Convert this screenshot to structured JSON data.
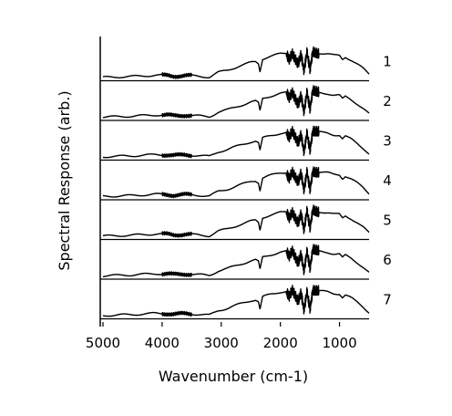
{
  "chart_data": {
    "type": "line",
    "title": "",
    "xlabel": "Wavenumber (cm-1)",
    "ylabel": "Spectral Response (arb.)",
    "x_reversed": true,
    "xlim": [
      5000,
      500
    ],
    "x_ticks": [
      5000,
      4000,
      3000,
      2000,
      1000
    ],
    "x_tick_labels": [
      "5000",
      "4000",
      "3000",
      "2000",
      "1000"
    ],
    "grid": false,
    "stacked_panels": true,
    "series": [
      {
        "name": "1"
      },
      {
        "name": "2"
      },
      {
        "name": "3"
      },
      {
        "name": "4"
      },
      {
        "name": "5"
      },
      {
        "name": "6"
      },
      {
        "name": "7"
      }
    ],
    "spectrum_shape": {
      "x": [
        5000,
        4500,
        4100,
        3900,
        3800,
        3700,
        3600,
        3400,
        3200,
        3050,
        2900,
        2700,
        2500,
        2420,
        2370,
        2345,
        2300,
        2200,
        2100,
        2000,
        1900,
        1850,
        1800,
        1700,
        1650,
        1600,
        1550,
        1500,
        1450,
        1400,
        1300,
        1200,
        1100,
        1000,
        950,
        900,
        800,
        700,
        600,
        500
      ],
      "y": [
        0.02,
        0.05,
        0.09,
        0.08,
        0.06,
        0.07,
        0.08,
        0.06,
        0.03,
        0.18,
        0.25,
        0.38,
        0.5,
        0.53,
        0.47,
        0.22,
        0.62,
        0.68,
        0.73,
        0.78,
        0.8,
        0.62,
        0.82,
        0.45,
        0.75,
        0.2,
        0.82,
        0.25,
        0.85,
        0.82,
        0.8,
        0.78,
        0.73,
        0.72,
        0.6,
        0.68,
        0.58,
        0.45,
        0.3,
        0.12
      ]
    }
  }
}
